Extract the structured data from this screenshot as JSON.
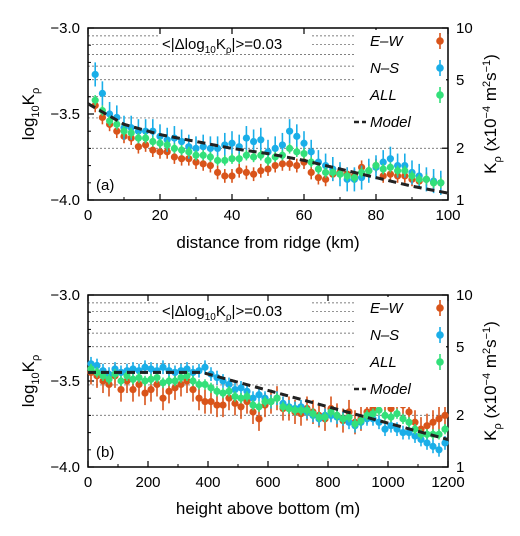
{
  "colors": {
    "ew": "#d9541a",
    "ns": "#1aaee8",
    "all": "#33e07a",
    "model": "#222222"
  },
  "chart_data": [
    {
      "type": "scatter",
      "panel_label": "(a)",
      "annotation": "<|Δlog₁₀Kᵨ|>=0.03",
      "annotation_parts": {
        "pre": "<|Δlog",
        "sub1": "10",
        "mid": "K",
        "sub2": "ρ",
        "post": "|>=0.03"
      },
      "xlabel": "distance from ridge (km)",
      "ylabel": {
        "main": "log",
        "sub1": "10",
        "mid": "K",
        "sub2": "ρ"
      },
      "y2label": {
        "pre": "K",
        "sub": "ρ",
        "post": " (x10",
        "sup1": "−4",
        "post2": " m",
        "sup2": "2",
        "post3": "s",
        "sup3": "−1",
        "end": ")"
      },
      "xlim": [
        0,
        100
      ],
      "ylim": [
        -4.0,
        -3.0
      ],
      "xticks": [
        0,
        20,
        40,
        60,
        80,
        100
      ],
      "xtick_labels": [
        "0",
        "20",
        "40",
        "60",
        "80",
        "100"
      ],
      "yticks": [
        -4.0,
        -3.5,
        -3.0
      ],
      "ytick_labels": [
        "−4.0",
        "−3.5",
        "−3.0"
      ],
      "y2ticks": [
        1,
        2,
        5,
        10
      ],
      "y2tick_labels": [
        "1",
        "2",
        "5",
        "10"
      ],
      "legend": [
        "E–W",
        "N–S",
        "ALL",
        "Model"
      ],
      "series": [
        {
          "name": "E–W",
          "x": [
            2,
            4,
            6,
            8,
            10,
            12,
            14,
            16,
            18,
            20,
            22,
            24,
            26,
            28,
            30,
            32,
            34,
            36,
            38,
            40,
            42,
            44,
            46,
            48,
            50,
            52,
            54,
            56,
            58,
            60,
            62,
            64,
            66,
            68,
            70,
            72,
            74,
            76,
            78,
            80,
            82,
            84,
            86,
            88,
            90,
            92,
            94,
            96,
            98
          ],
          "y": [
            -3.45,
            -3.52,
            -3.56,
            -3.6,
            -3.63,
            -3.64,
            -3.69,
            -3.68,
            -3.71,
            -3.72,
            -3.72,
            -3.75,
            -3.76,
            -3.76,
            -3.78,
            -3.79,
            -3.8,
            -3.84,
            -3.86,
            -3.86,
            -3.83,
            -3.84,
            -3.85,
            -3.83,
            -3.82,
            -3.8,
            -3.79,
            -3.79,
            -3.8,
            -3.78,
            -3.84,
            -3.87,
            -3.88,
            -3.85,
            -3.84,
            -3.85,
            -3.86,
            -3.81,
            -3.83,
            -3.8,
            -3.86,
            -3.85,
            -3.86,
            -3.86,
            -3.88,
            -3.89,
            -3.88,
            -3.9,
            -3.9
          ],
          "err": 0.04
        },
        {
          "name": "N–S",
          "x": [
            2,
            4,
            6,
            8,
            10,
            12,
            14,
            16,
            18,
            20,
            22,
            24,
            26,
            28,
            30,
            32,
            34,
            36,
            38,
            40,
            42,
            44,
            46,
            48,
            50,
            52,
            54,
            56,
            58,
            60,
            62,
            64,
            66,
            68,
            70,
            72,
            74,
            76,
            78,
            80,
            82,
            84,
            86,
            88,
            90,
            92,
            94,
            96,
            98
          ],
          "y": [
            -3.27,
            -3.38,
            -3.5,
            -3.52,
            -3.58,
            -3.58,
            -3.6,
            -3.6,
            -3.6,
            -3.63,
            -3.65,
            -3.64,
            -3.66,
            -3.69,
            -3.7,
            -3.69,
            -3.7,
            -3.7,
            -3.68,
            -3.67,
            -3.69,
            -3.64,
            -3.66,
            -3.65,
            -3.72,
            -3.7,
            -3.68,
            -3.6,
            -3.63,
            -3.67,
            -3.72,
            -3.78,
            -3.8,
            -3.82,
            -3.85,
            -3.88,
            -3.88,
            -3.87,
            -3.83,
            -3.81,
            -3.78,
            -3.76,
            -3.8,
            -3.8,
            -3.84,
            -3.86,
            -3.88,
            -3.89,
            -3.9
          ],
          "err": 0.07
        },
        {
          "name": "ALL",
          "x": [
            2,
            4,
            6,
            8,
            10,
            12,
            14,
            16,
            18,
            20,
            22,
            24,
            26,
            28,
            30,
            32,
            34,
            36,
            38,
            40,
            42,
            44,
            46,
            48,
            50,
            52,
            54,
            56,
            58,
            60,
            62,
            64,
            66,
            68,
            70,
            72,
            74,
            76,
            78,
            80,
            82,
            84,
            86,
            88,
            90,
            92,
            94,
            96,
            98
          ],
          "y": [
            -3.42,
            -3.48,
            -3.54,
            -3.56,
            -3.6,
            -3.61,
            -3.64,
            -3.64,
            -3.66,
            -3.67,
            -3.68,
            -3.7,
            -3.71,
            -3.72,
            -3.74,
            -3.74,
            -3.75,
            -3.77,
            -3.77,
            -3.76,
            -3.76,
            -3.74,
            -3.75,
            -3.74,
            -3.77,
            -3.75,
            -3.74,
            -3.7,
            -3.72,
            -3.73,
            -3.78,
            -3.82,
            -3.84,
            -3.84,
            -3.85,
            -3.86,
            -3.87,
            -3.84,
            -3.83,
            -3.8,
            -3.82,
            -3.81,
            -3.83,
            -3.83,
            -3.86,
            -3.88,
            -3.88,
            -3.9,
            -3.9
          ],
          "err": 0.03
        },
        {
          "name": "Model",
          "x": [
            0,
            10,
            20,
            30,
            40,
            50,
            60,
            70,
            80,
            90,
            100
          ],
          "y": [
            -3.44,
            -3.56,
            -3.62,
            -3.66,
            -3.7,
            -3.73,
            -3.77,
            -3.82,
            -3.87,
            -3.92,
            -3.96
          ],
          "line": true
        }
      ]
    },
    {
      "type": "scatter",
      "panel_label": "(b)",
      "annotation_parts": {
        "pre": "<|Δlog",
        "sub1": "10",
        "mid": "K",
        "sub2": "ρ",
        "post": "|>=0.03"
      },
      "xlabel": "height above bottom (m)",
      "ylabel": {
        "main": "log",
        "sub1": "10",
        "mid": "K",
        "sub2": "ρ"
      },
      "y2label": {
        "pre": "K",
        "sub": "ρ",
        "post": " (x10",
        "sup1": "−4",
        "post2": " m",
        "sup2": "2",
        "post3": "s",
        "sup3": "−1",
        "end": ")"
      },
      "xlim": [
        0,
        1200
      ],
      "ylim": [
        -4.0,
        -3.0
      ],
      "xticks": [
        0,
        200,
        400,
        600,
        800,
        1000,
        1200
      ],
      "xtick_labels": [
        "0",
        "200",
        "400",
        "600",
        "800",
        "1000",
        "1200"
      ],
      "yticks": [
        -4.0,
        -3.5,
        -3.0
      ],
      "ytick_labels": [
        "−4.0",
        "−3.5",
        "−3.0"
      ],
      "y2ticks": [
        1,
        2,
        5,
        10
      ],
      "y2tick_labels": [
        "1",
        "2",
        "5",
        "10"
      ],
      "legend": [
        "E–W",
        "N–S",
        "ALL",
        "Model"
      ],
      "series": [
        {
          "name": "E–W",
          "x": [
            10,
            30,
            50,
            70,
            90,
            110,
            130,
            150,
            170,
            190,
            210,
            230,
            250,
            270,
            290,
            310,
            330,
            350,
            370,
            390,
            410,
            430,
            450,
            470,
            490,
            510,
            530,
            550,
            570,
            590,
            610,
            630,
            650,
            670,
            690,
            710,
            730,
            750,
            770,
            790,
            810,
            830,
            850,
            870,
            890,
            910,
            930,
            950,
            970,
            990,
            1010,
            1030,
            1050,
            1070,
            1090,
            1110,
            1130,
            1150,
            1170,
            1190
          ],
          "y": [
            -3.45,
            -3.47,
            -3.5,
            -3.52,
            -3.47,
            -3.55,
            -3.5,
            -3.55,
            -3.52,
            -3.57,
            -3.55,
            -3.52,
            -3.6,
            -3.56,
            -3.54,
            -3.52,
            -3.5,
            -3.55,
            -3.6,
            -3.62,
            -3.62,
            -3.64,
            -3.64,
            -3.6,
            -3.63,
            -3.65,
            -3.62,
            -3.68,
            -3.72,
            -3.64,
            -3.62,
            -3.6,
            -3.66,
            -3.66,
            -3.68,
            -3.69,
            -3.66,
            -3.68,
            -3.7,
            -3.72,
            -3.66,
            -3.7,
            -3.73,
            -3.68,
            -3.74,
            -3.72,
            -3.68,
            -3.66,
            -3.6,
            -3.62,
            -3.66,
            -3.6,
            -3.64,
            -3.68,
            -3.74,
            -3.78,
            -3.76,
            -3.74,
            -3.72,
            -3.7
          ],
          "err": 0.07
        },
        {
          "name": "N–S",
          "x": [
            10,
            30,
            50,
            70,
            90,
            110,
            130,
            150,
            170,
            190,
            210,
            230,
            250,
            270,
            290,
            310,
            330,
            350,
            370,
            390,
            410,
            430,
            450,
            470,
            490,
            510,
            530,
            550,
            570,
            590,
            610,
            630,
            650,
            670,
            690,
            710,
            730,
            750,
            770,
            790,
            810,
            830,
            850,
            870,
            890,
            910,
            930,
            950,
            970,
            990,
            1010,
            1030,
            1050,
            1070,
            1090,
            1110,
            1130,
            1150,
            1170,
            1190
          ],
          "y": [
            -3.4,
            -3.41,
            -3.44,
            -3.46,
            -3.43,
            -3.45,
            -3.44,
            -3.43,
            -3.44,
            -3.42,
            -3.43,
            -3.44,
            -3.42,
            -3.44,
            -3.45,
            -3.44,
            -3.43,
            -3.45,
            -3.44,
            -3.42,
            -3.46,
            -3.48,
            -3.5,
            -3.52,
            -3.55,
            -3.54,
            -3.56,
            -3.6,
            -3.58,
            -3.6,
            -3.62,
            -3.6,
            -3.63,
            -3.65,
            -3.66,
            -3.65,
            -3.68,
            -3.7,
            -3.72,
            -3.7,
            -3.7,
            -3.71,
            -3.72,
            -3.74,
            -3.76,
            -3.74,
            -3.72,
            -3.72,
            -3.74,
            -3.78,
            -3.76,
            -3.78,
            -3.8,
            -3.8,
            -3.82,
            -3.84,
            -3.86,
            -3.88,
            -3.9,
            -3.86
          ],
          "err": 0.04
        },
        {
          "name": "ALL",
          "x": [
            10,
            30,
            50,
            70,
            90,
            110,
            130,
            150,
            170,
            190,
            210,
            230,
            250,
            270,
            290,
            310,
            330,
            350,
            370,
            390,
            410,
            430,
            450,
            470,
            490,
            510,
            530,
            550,
            570,
            590,
            610,
            630,
            650,
            670,
            690,
            710,
            730,
            750,
            770,
            790,
            810,
            830,
            850,
            870,
            890,
            910,
            930,
            950,
            970,
            990,
            1010,
            1030,
            1050,
            1070,
            1090,
            1110,
            1130,
            1150,
            1170,
            1190
          ],
          "y": [
            -3.43,
            -3.45,
            -3.47,
            -3.49,
            -3.46,
            -3.5,
            -3.47,
            -3.49,
            -3.48,
            -3.5,
            -3.49,
            -3.48,
            -3.51,
            -3.5,
            -3.5,
            -3.48,
            -3.47,
            -3.5,
            -3.52,
            -3.52,
            -3.54,
            -3.56,
            -3.57,
            -3.56,
            -3.59,
            -3.6,
            -3.59,
            -3.64,
            -3.65,
            -3.62,
            -3.62,
            -3.6,
            -3.65,
            -3.66,
            -3.67,
            -3.67,
            -3.67,
            -3.69,
            -3.71,
            -3.71,
            -3.68,
            -3.7,
            -3.72,
            -3.71,
            -3.75,
            -3.73,
            -3.7,
            -3.69,
            -3.67,
            -3.7,
            -3.71,
            -3.69,
            -3.72,
            -3.74,
            -3.78,
            -3.81,
            -3.81,
            -3.81,
            -3.81,
            -3.78
          ],
          "err": 0.03
        },
        {
          "name": "Model",
          "x": [
            0,
            380,
            1200
          ],
          "y": [
            -3.45,
            -3.45,
            -3.84
          ],
          "line": true
        }
      ]
    }
  ]
}
